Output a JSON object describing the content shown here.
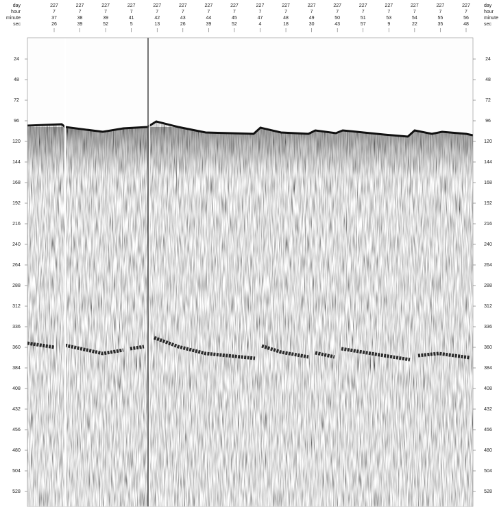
{
  "header": {
    "row_labels": [
      "day",
      "hour",
      "minute",
      "sec"
    ],
    "columns": [
      {
        "day": 227,
        "hour": 7,
        "minute": 37,
        "sec": 26
      },
      {
        "day": 227,
        "hour": 7,
        "minute": 38,
        "sec": 39
      },
      {
        "day": 227,
        "hour": 7,
        "minute": 39,
        "sec": 52
      },
      {
        "day": 227,
        "hour": 7,
        "minute": 41,
        "sec": 5
      },
      {
        "day": 227,
        "hour": 7,
        "minute": 42,
        "sec": 13
      },
      {
        "day": 227,
        "hour": 7,
        "minute": 43,
        "sec": 26
      },
      {
        "day": 227,
        "hour": 7,
        "minute": 44,
        "sec": 39
      },
      {
        "day": 227,
        "hour": 7,
        "minute": 45,
        "sec": 52
      },
      {
        "day": 227,
        "hour": 7,
        "minute": 47,
        "sec": 4
      },
      {
        "day": 227,
        "hour": 7,
        "minute": 48,
        "sec": 18
      },
      {
        "day": 227,
        "hour": 7,
        "minute": 49,
        "sec": 30
      },
      {
        "day": 227,
        "hour": 7,
        "minute": 50,
        "sec": 43
      },
      {
        "day": 227,
        "hour": 7,
        "minute": 51,
        "sec": 57
      },
      {
        "day": 227,
        "hour": 7,
        "minute": 53,
        "sec": 9
      },
      {
        "day": 227,
        "hour": 7,
        "minute": 54,
        "sec": 22
      },
      {
        "day": 227,
        "hour": 7,
        "minute": 55,
        "sec": 35
      },
      {
        "day": 227,
        "hour": 7,
        "minute": 56,
        "sec": 48
      }
    ]
  },
  "y_axis": {
    "lim": [
      0,
      545
    ],
    "ticks": [
      24,
      48,
      72,
      96,
      120,
      144,
      168,
      192,
      216,
      240,
      264,
      288,
      312,
      336,
      360,
      384,
      408,
      432,
      456,
      480,
      504,
      528
    ]
  }
}
